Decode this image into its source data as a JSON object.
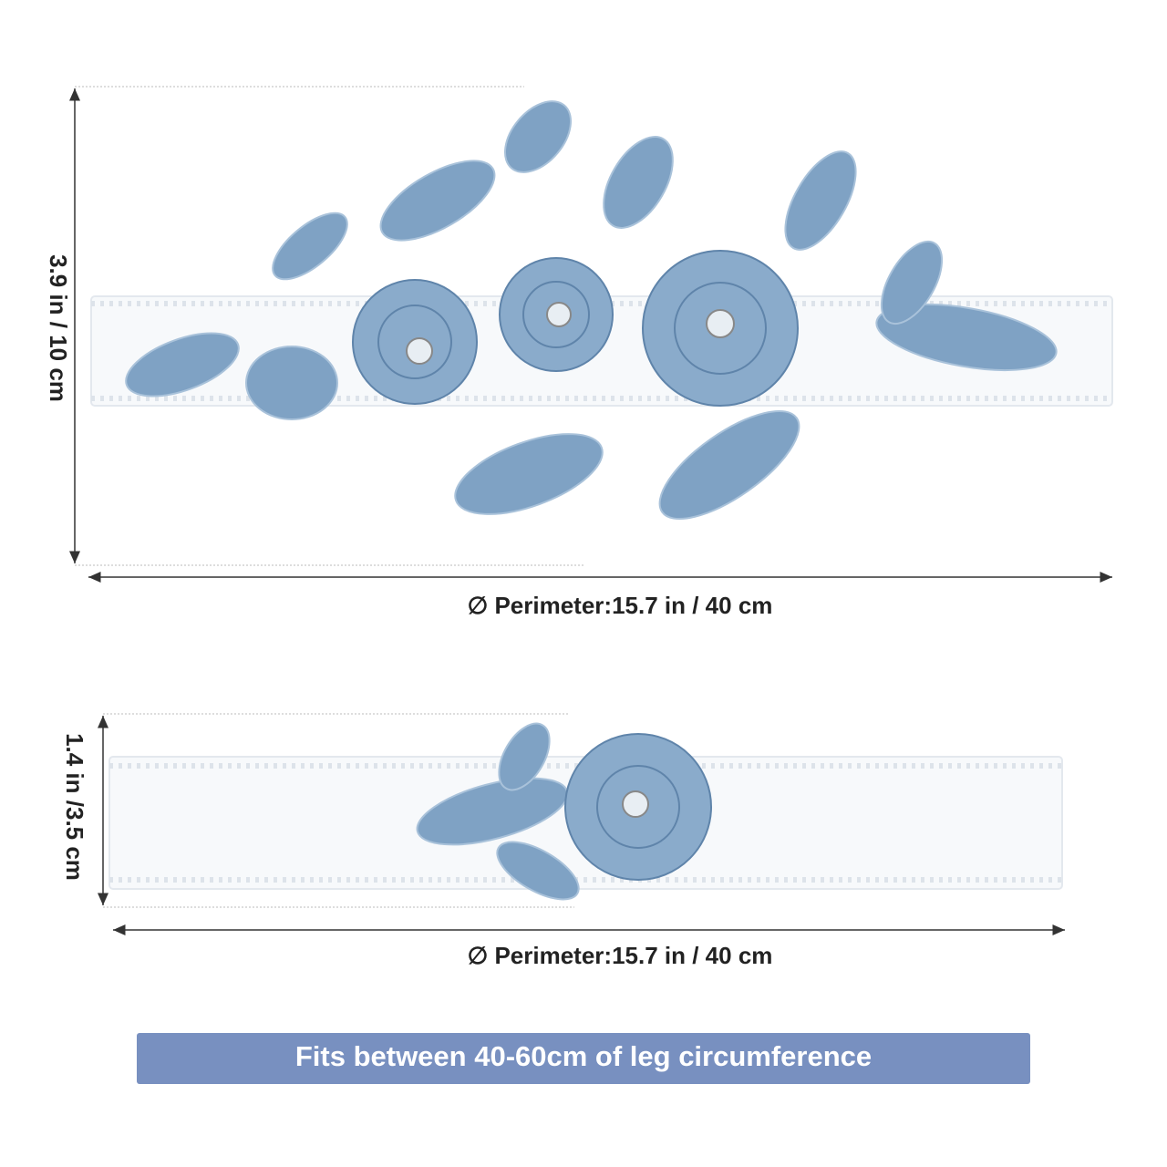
{
  "garters": [
    {
      "height_label": "3.9 in / 10 cm",
      "perimeter_label": "∅ Perimeter:15.7 in / 40 cm"
    },
    {
      "height_label": "1.4 in /3.5 cm",
      "perimeter_label": "∅ Perimeter:15.7 in / 40 cm"
    }
  ],
  "banner": {
    "text": "Fits between 40-60cm of leg circumference"
  }
}
